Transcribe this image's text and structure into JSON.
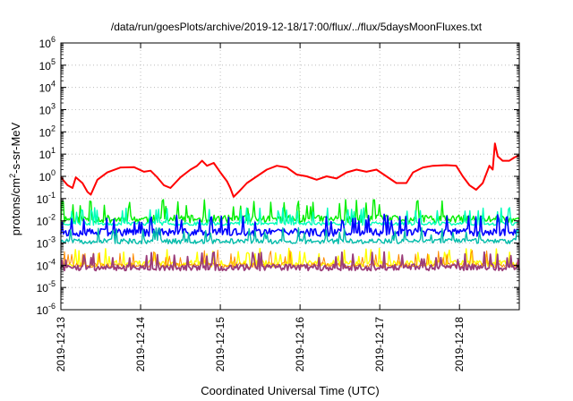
{
  "chart_data": {
    "type": "line",
    "title": "/data/run/goesPlots/archive/2019-12-18/17:00/flux/../flux/5daysMoonFluxes.txt",
    "xlabel": "Coordinated Universal Time (UTC)",
    "ylabel": "protons/cm²-s-sr-MeV",
    "ylabel_parts": {
      "pre": "protons/cm",
      "sup": "2",
      "post": "-s-sr-MeV"
    },
    "y_scale": "log",
    "ylim": [
      1e-06,
      1000000.0
    ],
    "y_ticks": [
      {
        "value": 1e-06,
        "base": "10",
        "exp": "-6"
      },
      {
        "value": 1e-05,
        "base": "10",
        "exp": "-5"
      },
      {
        "value": 0.0001,
        "base": "10",
        "exp": "-4"
      },
      {
        "value": 0.001,
        "base": "10",
        "exp": "-3"
      },
      {
        "value": 0.01,
        "base": "10",
        "exp": "-2"
      },
      {
        "value": 0.1,
        "base": "10",
        "exp": "-1"
      },
      {
        "value": 1,
        "base": "10",
        "exp": "0"
      },
      {
        "value": 10.0,
        "base": "10",
        "exp": "1"
      },
      {
        "value": 100.0,
        "base": "10",
        "exp": "2"
      },
      {
        "value": 1000.0,
        "base": "10",
        "exp": "3"
      },
      {
        "value": 10000.0,
        "base": "10",
        "exp": "4"
      },
      {
        "value": 100000.0,
        "base": "10",
        "exp": "5"
      },
      {
        "value": 1000000.0,
        "base": "10",
        "exp": "6"
      }
    ],
    "x_axis": "date",
    "xlim": [
      "2019-12-13",
      "2019-12-18T18:00"
    ],
    "x_ticks": [
      "2019-12-13",
      "2019-12-14",
      "2019-12-15",
      "2019-12-16",
      "2019-12-17",
      "2019-12-18"
    ],
    "grid": true,
    "series": [
      {
        "color": "#ff0000",
        "width": 2.0,
        "points": [
          [
            "2019-12-13T00:00",
            0.9
          ],
          [
            "2019-12-13T02:00",
            0.4
          ],
          [
            "2019-12-13T03:30",
            0.3
          ],
          [
            "2019-12-13T04:30",
            0.9
          ],
          [
            "2019-12-13T06:30",
            0.5
          ],
          [
            "2019-12-13T08:00",
            0.2
          ],
          [
            "2019-12-13T09:00",
            0.15
          ],
          [
            "2019-12-13T11:00",
            0.7
          ],
          [
            "2019-12-13T14:00",
            1.5
          ],
          [
            "2019-12-13T18:00",
            2.5
          ],
          [
            "2019-12-13T22:00",
            2.6
          ],
          [
            "2019-12-14T01:00",
            1.6
          ],
          [
            "2019-12-14T03:00",
            1.8
          ],
          [
            "2019-12-14T05:00",
            0.9
          ],
          [
            "2019-12-14T07:00",
            0.4
          ],
          [
            "2019-12-14T09:00",
            0.3
          ],
          [
            "2019-12-14T12:00",
            0.9
          ],
          [
            "2019-12-14T15:00",
            2.0
          ],
          [
            "2019-12-14T17:00",
            3.0
          ],
          [
            "2019-12-14T18:30",
            5.0
          ],
          [
            "2019-12-14T20:00",
            3.0
          ],
          [
            "2019-12-14T22:00",
            4.0
          ],
          [
            "2019-12-15T00:00",
            1.5
          ],
          [
            "2019-12-15T02:00",
            0.6
          ],
          [
            "2019-12-15T03:00",
            0.3
          ],
          [
            "2019-12-15T04:00",
            0.12
          ],
          [
            "2019-12-15T05:30",
            0.2
          ],
          [
            "2019-12-15T08:00",
            0.5
          ],
          [
            "2019-12-15T11:00",
            1.0
          ],
          [
            "2019-12-15T14:00",
            2.0
          ],
          [
            "2019-12-15T17:00",
            3.0
          ],
          [
            "2019-12-15T20:00",
            2.5
          ],
          [
            "2019-12-15T23:00",
            1.2
          ],
          [
            "2019-12-16T02:00",
            1.0
          ],
          [
            "2019-12-16T05:00",
            0.7
          ],
          [
            "2019-12-16T08:00",
            1.0
          ],
          [
            "2019-12-16T11:00",
            0.8
          ],
          [
            "2019-12-16T14:00",
            1.5
          ],
          [
            "2019-12-16T17:00",
            2.0
          ],
          [
            "2019-12-16T20:00",
            1.6
          ],
          [
            "2019-12-16T23:00",
            2.0
          ],
          [
            "2019-12-17T02:00",
            1.0
          ],
          [
            "2019-12-17T05:00",
            0.5
          ],
          [
            "2019-12-17T08:00",
            0.5
          ],
          [
            "2019-12-17T10:00",
            1.5
          ],
          [
            "2019-12-17T13:00",
            2.5
          ],
          [
            "2019-12-17T16:00",
            3.0
          ],
          [
            "2019-12-17T20:00",
            3.2
          ],
          [
            "2019-12-17T23:00",
            3.0
          ],
          [
            "2019-12-18T01:00",
            1.0
          ],
          [
            "2019-12-18T03:00",
            0.4
          ],
          [
            "2019-12-18T05:00",
            0.25
          ],
          [
            "2019-12-18T07:00",
            0.5
          ],
          [
            "2019-12-18T09:00",
            3.0
          ],
          [
            "2019-12-18T10:00",
            2.0
          ],
          [
            "2019-12-18T10:40",
            30
          ],
          [
            "2019-12-18T11:30",
            8.0
          ],
          [
            "2019-12-18T13:00",
            5.0
          ],
          [
            "2019-12-18T15:00",
            5.0
          ],
          [
            "2019-12-18T16:30",
            7.0
          ],
          [
            "2019-12-18T18:00",
            9.0
          ]
        ]
      },
      {
        "color": "#00ee00",
        "width": 1.4,
        "base": 0.012,
        "amp": 1.5,
        "seed": 11,
        "spike": 0.09
      },
      {
        "color": "#00ffbb",
        "width": 1.4,
        "base": 0.0075,
        "amp": 1.2,
        "seed": 23,
        "spike": 0.04
      },
      {
        "color": "#0000ff",
        "width": 1.6,
        "base": 0.003,
        "amp": 1.5,
        "seed": 37,
        "spike": 0.02
      },
      {
        "color": "#00bbaa",
        "width": 1.4,
        "base": 0.0012,
        "amp": 1.3,
        "seed": 51,
        "spike": 0.005
      },
      {
        "color": "#ffff00",
        "width": 1.4,
        "base": 0.00012,
        "amp": 1.4,
        "seed": 63,
        "spike": 0.0006
      },
      {
        "color": "#ff8c00",
        "width": 1.0,
        "base": 0.0001,
        "amp": 1.3,
        "seed": 79,
        "spike": 0.0005
      },
      {
        "color": "#9b3d7a",
        "width": 1.8,
        "base": 8e-05,
        "amp": 1.4,
        "seed": 91,
        "spike": 0.0004
      }
    ]
  }
}
